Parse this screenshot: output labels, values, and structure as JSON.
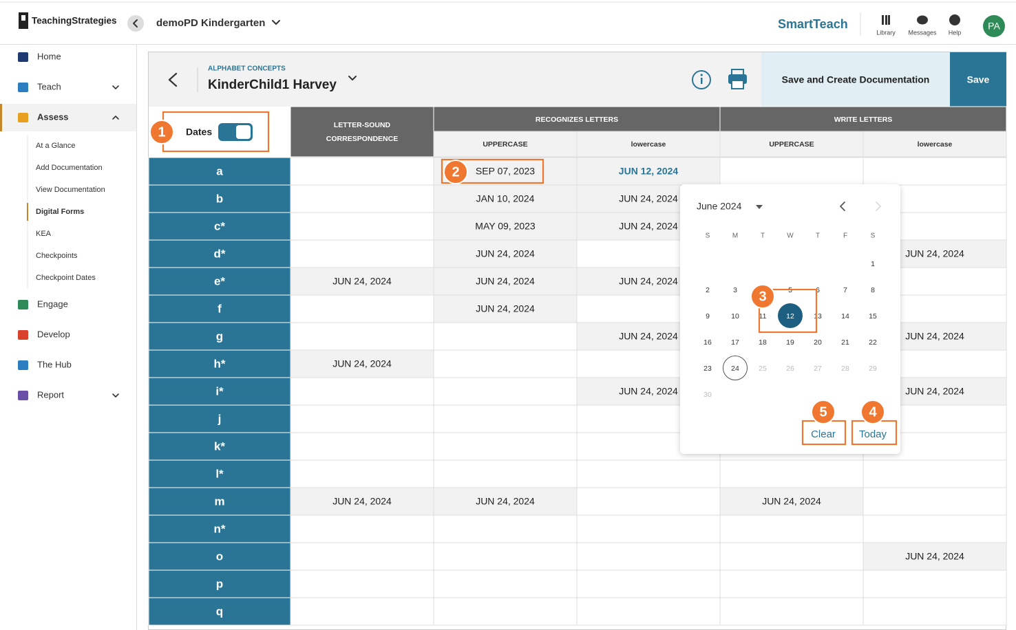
{
  "header": {
    "brand": "TeachingStrategies",
    "class_name": "demoPD Kindergarten",
    "product": "SmartTeach",
    "nav": [
      "Library",
      "Messages",
      "Help"
    ],
    "avatar": "PA"
  },
  "sidebar": {
    "items": [
      {
        "label": "Home"
      },
      {
        "label": "Teach",
        "expandable": true
      },
      {
        "label": "Assess",
        "expandable": true,
        "active": true,
        "subitems": [
          {
            "label": "At a Glance"
          },
          {
            "label": "Add Documentation"
          },
          {
            "label": "View Documentation"
          },
          {
            "label": "Digital Forms",
            "active": true
          },
          {
            "label": "KEA"
          },
          {
            "label": "Checkpoints"
          },
          {
            "label": "Checkpoint Dates"
          }
        ]
      },
      {
        "label": "Engage"
      },
      {
        "label": "Develop"
      },
      {
        "label": "The Hub"
      },
      {
        "label": "Report",
        "expandable": true
      }
    ]
  },
  "form": {
    "category": "ALPHABET CONCEPTS",
    "child": "KinderChild1 Harvey",
    "buttons": [
      "Save and Create Documentation",
      "Save"
    ]
  },
  "table": {
    "toggle_label": "Dates",
    "toggle_on": true,
    "columns": [
      {
        "group": "LETTER-SOUND CORRESPONDENCE"
      },
      {
        "group": "RECOGNIZES LETTERS",
        "sub": [
          "UPPERCASE",
          "lowercase"
        ]
      },
      {
        "group": "WRITE LETTERS",
        "sub": [
          "UPPERCASE",
          "lowercase"
        ]
      }
    ],
    "active_cell": {
      "row": 0,
      "col": 2
    },
    "rows": [
      {
        "letter": "a",
        "cells": [
          null,
          "SEP 07, 2023",
          "JUN 12, 2024",
          null,
          null
        ]
      },
      {
        "letter": "b",
        "cells": [
          null,
          "JAN 10, 2024",
          "JUN 24, 2024",
          null,
          null
        ]
      },
      {
        "letter": "c*",
        "cells": [
          null,
          "MAY 09, 2023",
          "JUN 24, 2024",
          null,
          null
        ]
      },
      {
        "letter": "d*",
        "cells": [
          null,
          "JUN 24, 2024",
          null,
          null,
          "JUN 24, 2024"
        ]
      },
      {
        "letter": "e*",
        "cells": [
          "JUN 24, 2024",
          "JUN 24, 2024",
          "JUN 24, 2024",
          null,
          null
        ]
      },
      {
        "letter": "f",
        "cells": [
          null,
          "JUN 24, 2024",
          null,
          null,
          null
        ]
      },
      {
        "letter": "g",
        "cells": [
          null,
          null,
          "JUN 24, 2024",
          null,
          "JUN 24, 2024"
        ]
      },
      {
        "letter": "h*",
        "cells": [
          "JUN 24, 2024",
          null,
          null,
          null,
          null
        ]
      },
      {
        "letter": "i*",
        "cells": [
          null,
          null,
          "JUN 24, 2024",
          null,
          "JUN 24, 2024"
        ]
      },
      {
        "letter": "j",
        "cells": [
          null,
          null,
          null,
          null,
          null
        ]
      },
      {
        "letter": "k*",
        "cells": [
          null,
          null,
          null,
          null,
          null
        ]
      },
      {
        "letter": "l*",
        "cells": [
          null,
          null,
          null,
          null,
          null
        ]
      },
      {
        "letter": "m",
        "cells": [
          "JUN 24, 2024",
          "JUN 24, 2024",
          null,
          "JUN 24, 2024",
          null
        ]
      },
      {
        "letter": "n*",
        "cells": [
          null,
          null,
          null,
          null,
          null
        ]
      },
      {
        "letter": "o",
        "cells": [
          null,
          null,
          null,
          null,
          "JUN 24, 2024"
        ]
      },
      {
        "letter": "p",
        "cells": [
          null,
          null,
          null,
          null,
          null
        ]
      },
      {
        "letter": "q",
        "cells": [
          null,
          null,
          null,
          null,
          null
        ]
      }
    ]
  },
  "datepicker": {
    "month": "June 2024",
    "weekdays": [
      "S",
      "M",
      "T",
      "W",
      "T",
      "F",
      "S"
    ],
    "weeks": [
      [
        null,
        null,
        null,
        null,
        null,
        null,
        1
      ],
      [
        2,
        3,
        4,
        5,
        6,
        7,
        8
      ],
      [
        9,
        10,
        11,
        12,
        13,
        14,
        15
      ],
      [
        16,
        17,
        18,
        19,
        20,
        21,
        22
      ],
      [
        23,
        24,
        25,
        26,
        27,
        28,
        29
      ],
      [
        30
      ]
    ],
    "selected": 12,
    "today": 24,
    "last_enabled": 24,
    "buttons": [
      "Clear",
      "Today"
    ]
  },
  "callouts": [
    1,
    2,
    3,
    4,
    5
  ]
}
